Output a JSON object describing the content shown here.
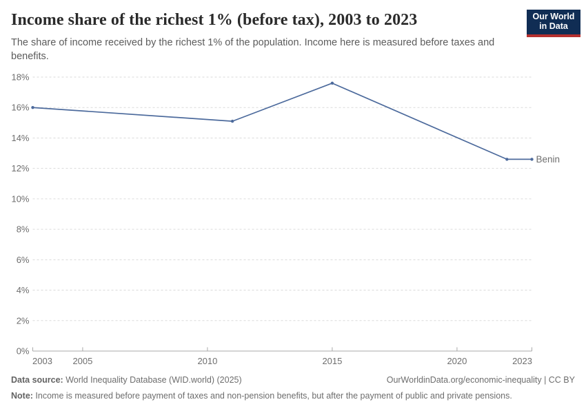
{
  "header": {
    "logo_line1": "Our World",
    "logo_line2": "in Data"
  },
  "chart_data": {
    "type": "line",
    "title": "Income share of the richest 1% (before tax), 2003 to 2023",
    "subtitle": "The share of income received by the richest 1% of the population. Income here is measured before taxes and benefits.",
    "series": [
      {
        "name": "Benin",
        "color": "#4C6A9C",
        "x": [
          2003,
          2011,
          2015,
          2022,
          2023
        ],
        "values": [
          16,
          15.1,
          17.6,
          12.6,
          12.6
        ]
      }
    ],
    "xlim": [
      2003,
      2023
    ],
    "ylim": [
      0,
      18
    ],
    "x_ticks": [
      2003,
      2005,
      2010,
      2015,
      2020,
      2023
    ],
    "y_ticks": [
      0,
      2,
      4,
      6,
      8,
      10,
      12,
      14,
      16,
      18
    ],
    "y_tick_suffix": "%",
    "grid": "horizontal-dashed",
    "legend": "line-end-label",
    "markers": true
  },
  "footer": {
    "datasource_label": "Data source:",
    "datasource_text": " World Inequality Database (WID.world) (2025)",
    "link_text": "OurWorldinData.org/economic-inequality | CC BY",
    "note_label": "Note:",
    "note_text": " Income is measured before payment of taxes and non-pension benefits, but after the payment of public and private pensions."
  }
}
